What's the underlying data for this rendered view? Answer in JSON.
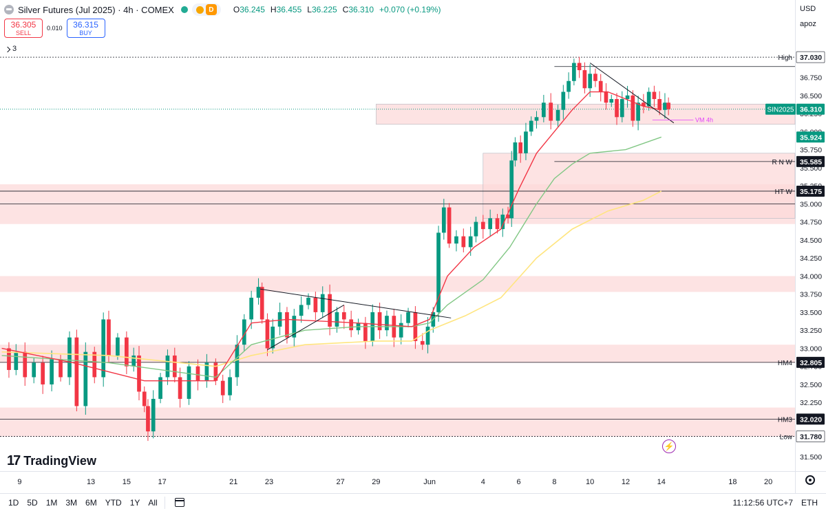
{
  "header": {
    "title": "Silver Futures (Jul 2025) · 4h · COMEX",
    "ohlc": [
      {
        "k": "O",
        "v": "36.245"
      },
      {
        "k": "H",
        "v": "36.455"
      },
      {
        "k": "L",
        "v": "36.225"
      },
      {
        "k": "C",
        "v": "36.310"
      }
    ],
    "change": "+0.070 (+0.19%)",
    "d_badge": "D",
    "sell_price": "36.305",
    "sell_label": "SELL",
    "spread": "0.010",
    "buy_price": "36.315",
    "buy_label": "BUY",
    "indicator_count": "3"
  },
  "right_panel": {
    "currency": "USD",
    "scale_mode": "apoz"
  },
  "logo_text": "TradingView",
  "footer": {
    "ranges": [
      "1D",
      "5D",
      "1M",
      "3M",
      "6M",
      "YTD",
      "1Y",
      "All"
    ],
    "time": "11:12:56 UTC+7",
    "session": "ETH"
  },
  "colors": {
    "up": "#089981",
    "down": "#f23645",
    "zone": "#fcdada",
    "ema_fast": "#f23645",
    "ema_mid": "#81c784",
    "ema_slow": "#ffe57f"
  },
  "chart_data": {
    "type": "candlestick",
    "yrange": [
      31.3,
      37.25
    ],
    "y_ticks": [
      31.5,
      31.75,
      32.0,
      32.25,
      32.5,
      32.75,
      33.0,
      33.25,
      33.5,
      33.75,
      34.0,
      34.25,
      34.5,
      34.75,
      35.0,
      35.25,
      35.5,
      35.75,
      36.0,
      36.25,
      36.5,
      36.75,
      37.0
    ],
    "x_labels": [
      {
        "label": "9",
        "d": 9
      },
      {
        "label": "13",
        "d": 13
      },
      {
        "label": "15",
        "d": 15
      },
      {
        "label": "17",
        "d": 17
      },
      {
        "label": "21",
        "d": 21
      },
      {
        "label": "23",
        "d": 23
      },
      {
        "label": "27",
        "d": 27
      },
      {
        "label": "29",
        "d": 29
      },
      {
        "label": "Jun",
        "d": 32
      },
      {
        "label": "4",
        "d": 35
      },
      {
        "label": "6",
        "d": 37
      },
      {
        "label": "8",
        "d": 39
      },
      {
        "label": "10",
        "d": 41
      },
      {
        "label": "12",
        "d": 43
      },
      {
        "label": "14",
        "d": 45
      },
      {
        "label": "18",
        "d": 49
      },
      {
        "label": "20",
        "d": 51
      }
    ],
    "x_range": [
      7.9,
      52.5
    ],
    "path": [
      [
        8.0,
        33.0
      ],
      [
        8.4,
        32.7
      ],
      [
        8.8,
        32.95
      ],
      [
        9.3,
        32.6
      ],
      [
        9.8,
        32.8
      ],
      [
        10.3,
        32.5
      ],
      [
        10.8,
        32.85
      ],
      [
        11.3,
        32.6
      ],
      [
        11.8,
        33.15
      ],
      [
        12.2,
        32.2
      ],
      [
        12.7,
        32.95
      ],
      [
        13.2,
        32.6
      ],
      [
        13.7,
        33.4
      ],
      [
        14.0,
        32.9
      ],
      [
        14.5,
        33.15
      ],
      [
        15.0,
        32.75
      ],
      [
        15.4,
        32.9
      ],
      [
        15.7,
        32.4
      ],
      [
        16.0,
        32.2
      ],
      [
        16.2,
        31.85
      ],
      [
        16.5,
        32.3
      ],
      [
        16.9,
        32.6
      ],
      [
        17.3,
        32.9
      ],
      [
        17.7,
        32.6
      ],
      [
        18.0,
        32.3
      ],
      [
        18.5,
        32.75
      ],
      [
        19.0,
        32.55
      ],
      [
        19.5,
        32.8
      ],
      [
        20.0,
        32.55
      ],
      [
        20.4,
        32.35
      ],
      [
        20.8,
        32.6
      ],
      [
        21.2,
        33.05
      ],
      [
        21.6,
        33.4
      ],
      [
        22.0,
        33.7
      ],
      [
        22.4,
        33.85
      ],
      [
        22.6,
        33.4
      ],
      [
        22.9,
        33.0
      ],
      [
        23.2,
        33.3
      ],
      [
        23.6,
        33.5
      ],
      [
        24.0,
        33.15
      ],
      [
        24.4,
        33.45
      ],
      [
        24.8,
        33.6
      ],
      [
        25.2,
        33.7
      ],
      [
        25.6,
        33.5
      ],
      [
        26.0,
        33.75
      ],
      [
        26.4,
        33.3
      ],
      [
        26.8,
        33.5
      ],
      [
        27.2,
        33.4
      ],
      [
        27.6,
        33.25
      ],
      [
        28.0,
        33.35
      ],
      [
        28.4,
        33.1
      ],
      [
        28.8,
        33.5
      ],
      [
        29.2,
        33.25
      ],
      [
        29.6,
        33.45
      ],
      [
        30.0,
        33.15
      ],
      [
        30.4,
        33.35
      ],
      [
        30.8,
        33.5
      ],
      [
        31.2,
        33.1
      ],
      [
        31.6,
        33.05
      ],
      [
        31.9,
        33.3
      ],
      [
        32.2,
        33.5
      ],
      [
        32.5,
        34.6
      ],
      [
        32.8,
        34.95
      ],
      [
        33.1,
        34.45
      ],
      [
        33.5,
        34.55
      ],
      [
        33.9,
        34.4
      ],
      [
        34.3,
        34.55
      ],
      [
        34.6,
        34.75
      ],
      [
        35.0,
        34.65
      ],
      [
        35.4,
        34.8
      ],
      [
        35.8,
        34.65
      ],
      [
        36.1,
        34.85
      ],
      [
        36.4,
        34.8
      ],
      [
        36.6,
        35.6
      ],
      [
        36.8,
        35.85
      ],
      [
        37.1,
        35.7
      ],
      [
        37.4,
        36.0
      ],
      [
        37.7,
        36.15
      ],
      [
        38.0,
        36.2
      ],
      [
        38.4,
        36.4
      ],
      [
        38.8,
        36.15
      ],
      [
        39.2,
        36.3
      ],
      [
        39.5,
        36.55
      ],
      [
        39.8,
        36.7
      ],
      [
        40.1,
        36.95
      ],
      [
        40.4,
        36.85
      ],
      [
        40.7,
        36.6
      ],
      [
        41.0,
        36.8
      ],
      [
        41.3,
        36.7
      ],
      [
        41.6,
        36.55
      ],
      [
        41.9,
        36.4
      ],
      [
        42.2,
        36.45
      ],
      [
        42.5,
        36.2
      ],
      [
        42.8,
        36.45
      ],
      [
        43.1,
        36.5
      ],
      [
        43.4,
        36.15
      ],
      [
        43.7,
        36.4
      ],
      [
        44.0,
        36.35
      ],
      [
        44.3,
        36.55
      ],
      [
        44.6,
        36.45
      ],
      [
        44.9,
        36.3
      ],
      [
        45.2,
        36.4
      ],
      [
        45.4,
        36.31
      ]
    ],
    "ema_fast": [
      [
        8.0,
        33.0
      ],
      [
        12.0,
        32.8
      ],
      [
        16.0,
        32.55
      ],
      [
        20.0,
        32.55
      ],
      [
        22.0,
        33.35
      ],
      [
        24.0,
        33.4
      ],
      [
        28.0,
        33.35
      ],
      [
        31.0,
        33.3
      ],
      [
        32.0,
        33.4
      ],
      [
        33.0,
        34.0
      ],
      [
        34.5,
        34.4
      ],
      [
        36.0,
        34.65
      ],
      [
        37.0,
        35.2
      ],
      [
        38.0,
        35.7
      ],
      [
        39.0,
        36.0
      ],
      [
        40.0,
        36.3
      ],
      [
        41.0,
        36.55
      ],
      [
        42.0,
        36.55
      ],
      [
        43.0,
        36.45
      ],
      [
        44.0,
        36.35
      ],
      [
        45.0,
        36.3
      ]
    ],
    "ema_mid": [
      [
        8.0,
        32.9
      ],
      [
        14.0,
        32.8
      ],
      [
        20.0,
        32.6
      ],
      [
        22.0,
        33.05
      ],
      [
        25.0,
        33.25
      ],
      [
        28.0,
        33.3
      ],
      [
        31.0,
        33.3
      ],
      [
        32.0,
        33.35
      ],
      [
        33.0,
        33.6
      ],
      [
        35.0,
        33.95
      ],
      [
        36.5,
        34.4
      ],
      [
        38.0,
        35.0
      ],
      [
        39.0,
        35.35
      ],
      [
        40.0,
        35.55
      ],
      [
        41.0,
        35.7
      ],
      [
        43.0,
        35.75
      ],
      [
        45.0,
        35.924
      ]
    ],
    "ema_slow": [
      [
        8.0,
        32.95
      ],
      [
        14.0,
        32.9
      ],
      [
        20.0,
        32.75
      ],
      [
        22.0,
        32.9
      ],
      [
        25.0,
        33.05
      ],
      [
        29.0,
        33.1
      ],
      [
        31.0,
        33.1
      ],
      [
        32.0,
        33.25
      ],
      [
        34.0,
        33.45
      ],
      [
        36.0,
        33.7
      ],
      [
        38.0,
        34.25
      ],
      [
        40.0,
        34.65
      ],
      [
        42.0,
        34.9
      ],
      [
        44.0,
        35.05
      ],
      [
        45.0,
        35.175
      ]
    ],
    "zones": [
      {
        "x0": 7.9,
        "x1": 52.5,
        "y0": 34.72,
        "y1": 35.27
      },
      {
        "x0": 7.9,
        "x1": 52.5,
        "y0": 33.78,
        "y1": 34.0
      },
      {
        "x0": 7.9,
        "x1": 52.5,
        "y0": 32.8,
        "y1": 33.05
      },
      {
        "x0": 7.9,
        "x1": 52.5,
        "y0": 31.78,
        "y1": 32.18
      },
      {
        "x0": 35.0,
        "x1": 52.5,
        "y0": 34.8,
        "y1": 35.7
      },
      {
        "x0": 29.0,
        "x1": 52.5,
        "y0": 36.1,
        "y1": 36.38
      }
    ],
    "hlines": [
      {
        "y": 37.03,
        "x0": 7.9,
        "label": "High"
      },
      {
        "y": 36.9,
        "x0": 39.0,
        "label": ""
      },
      {
        "y": 35.585,
        "x0": 39.0,
        "label": "R N W"
      },
      {
        "y": 35.175,
        "x0": 7.9,
        "label": "HT W"
      },
      {
        "y": 35.0,
        "x0": 7.9,
        "label": ""
      },
      {
        "y": 32.805,
        "x0": 7.9,
        "label": "HM4"
      },
      {
        "y": 32.02,
        "x0": 7.9,
        "label": "HM3"
      },
      {
        "y": 31.78,
        "x0": 7.9,
        "label": "Low"
      }
    ],
    "trendlines": [
      [
        [
          22.5,
          33.82
        ],
        [
          33.2,
          33.42
        ]
      ],
      [
        [
          22.9,
          32.98
        ],
        [
          27.2,
          33.6
        ]
      ],
      [
        [
          41.0,
          36.95
        ],
        [
          45.7,
          36.12
        ]
      ]
    ],
    "price_tags": [
      {
        "y": 37.03,
        "text": "37.030",
        "bg": "#ffffff",
        "fg": "#131722"
      },
      {
        "y": 36.31,
        "text": "36.310",
        "bg": "#089981",
        "fg": "#ffffff"
      },
      {
        "y": 35.924,
        "text": "35.924",
        "bg": "#089981",
        "fg": "#ffffff"
      },
      {
        "y": 35.585,
        "text": "35.585",
        "bg": "#131722",
        "fg": "#ffffff"
      },
      {
        "y": 35.175,
        "text": "35.175",
        "bg": "#131722",
        "fg": "#ffffff"
      },
      {
        "y": 32.805,
        "text": "32.805",
        "bg": "#131722",
        "fg": "#ffffff"
      },
      {
        "y": 32.02,
        "text": "32.020",
        "bg": "#131722",
        "fg": "#ffffff"
      },
      {
        "y": 31.78,
        "text": "31.780",
        "bg": "#ffffff",
        "fg": "#131722"
      }
    ],
    "symbol_tag": "SIN2025",
    "vm_label": "VM 4h"
  }
}
